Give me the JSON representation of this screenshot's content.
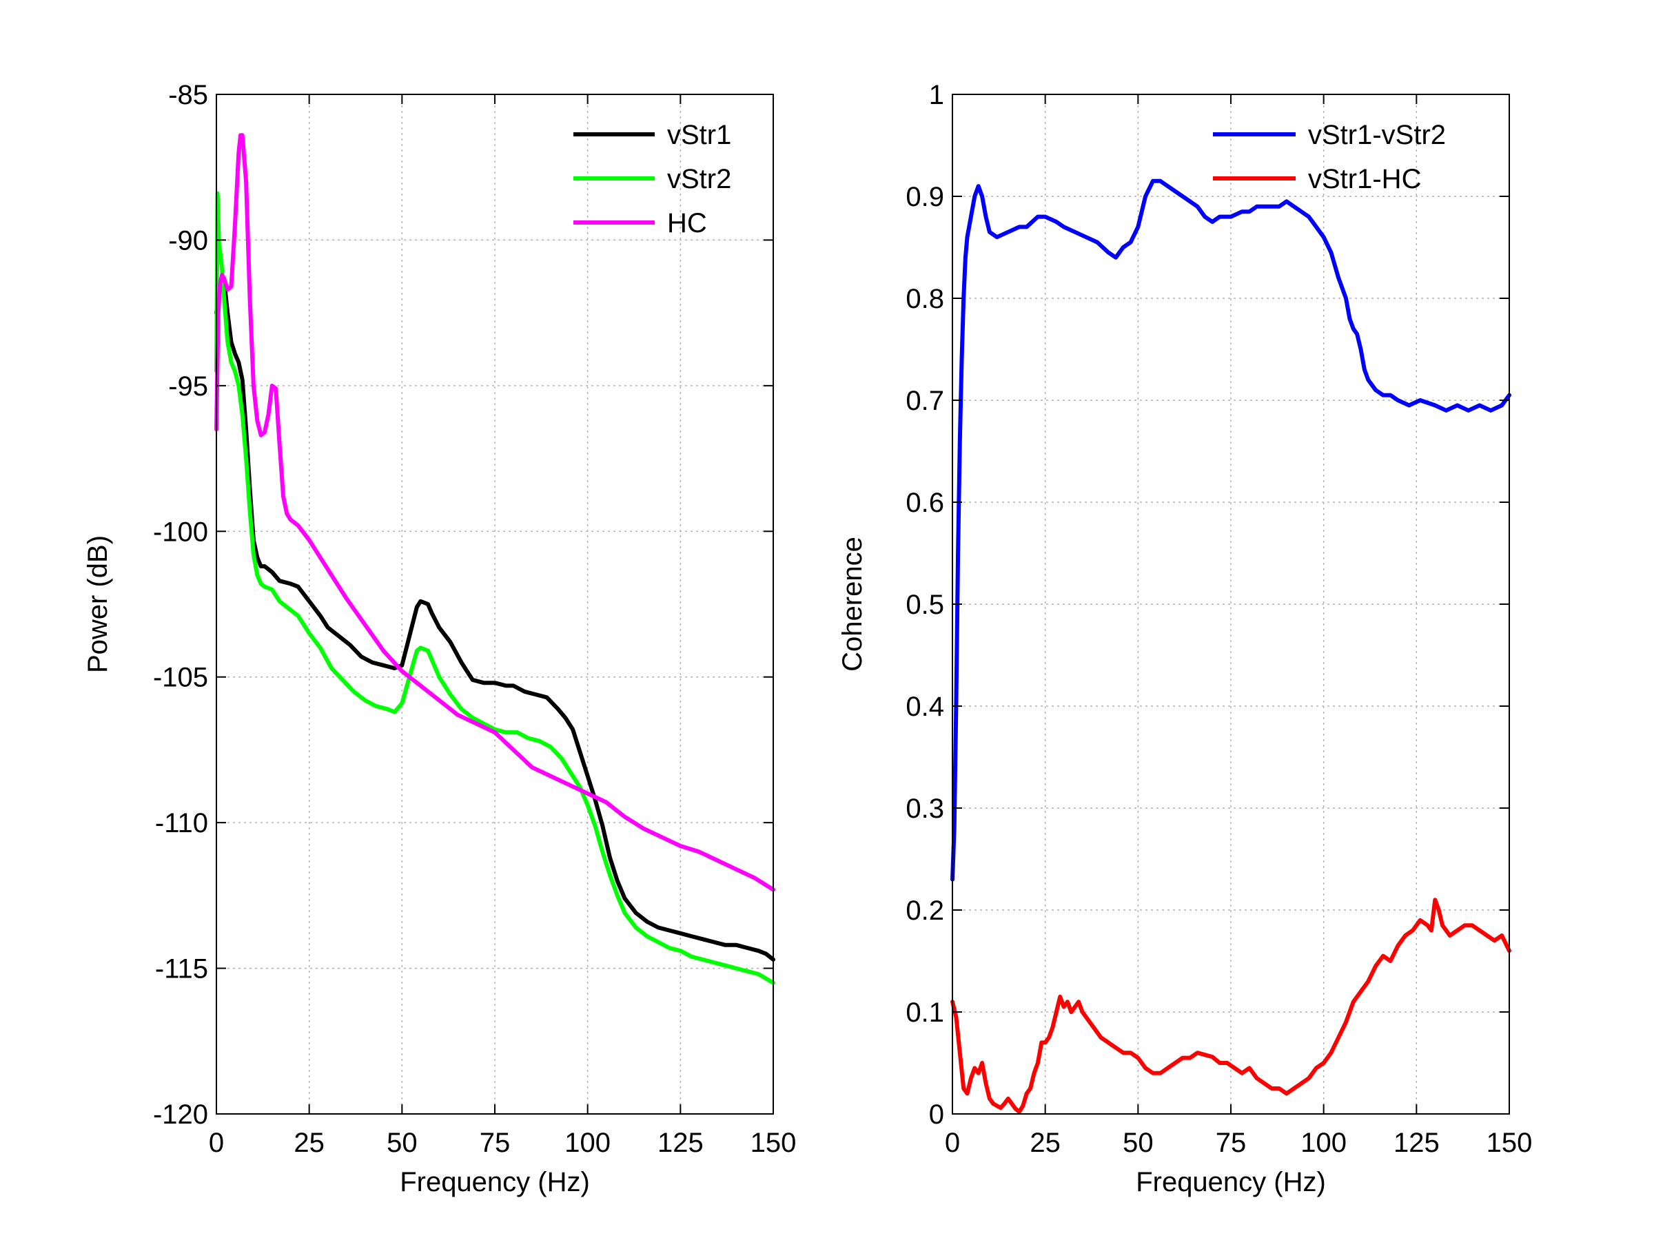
{
  "chart_data": [
    {
      "type": "line",
      "title": "",
      "xlabel": "Frequency (Hz)",
      "ylabel": "Power (dB)",
      "xlim": [
        0,
        150
      ],
      "ylim": [
        -120,
        -85
      ],
      "xticks": [
        0,
        25,
        50,
        75,
        100,
        125,
        150
      ],
      "yticks": [
        -120,
        -115,
        -110,
        -105,
        -100,
        -95,
        -90,
        -85
      ],
      "grid": true,
      "legend_position": "top-right",
      "series": [
        {
          "name": "vStr1",
          "color": "#000000",
          "x": [
            0,
            0.5,
            1,
            2,
            3,
            4,
            5,
            6,
            7,
            8,
            9,
            10,
            11,
            12,
            13,
            15,
            17,
            20,
            22,
            25,
            28,
            30,
            33,
            36,
            39,
            42,
            45,
            48,
            50,
            52,
            54,
            55,
            57,
            58,
            60,
            63,
            66,
            69,
            72,
            75,
            78,
            80,
            83,
            86,
            89,
            92,
            94,
            96,
            98,
            100,
            102,
            104,
            106,
            108,
            110,
            113,
            116,
            119,
            122,
            125,
            128,
            131,
            134,
            137,
            140,
            143,
            146,
            148,
            150
          ],
          "y": [
            -92.5,
            -92.0,
            -91.5,
            -91.3,
            -92.5,
            -93.5,
            -93.9,
            -94.2,
            -94.8,
            -96.5,
            -98.5,
            -100.3,
            -100.9,
            -101.2,
            -101.2,
            -101.4,
            -101.7,
            -101.8,
            -101.9,
            -102.4,
            -102.9,
            -103.3,
            -103.6,
            -103.9,
            -104.3,
            -104.5,
            -104.6,
            -104.7,
            -104.6,
            -103.6,
            -102.6,
            -102.4,
            -102.5,
            -102.8,
            -103.3,
            -103.8,
            -104.5,
            -105.1,
            -105.2,
            -105.2,
            -105.3,
            -105.3,
            -105.5,
            -105.6,
            -105.7,
            -106.1,
            -106.4,
            -106.8,
            -107.6,
            -108.4,
            -109.2,
            -110.1,
            -111.2,
            -112.0,
            -112.6,
            -113.1,
            -113.4,
            -113.6,
            -113.7,
            -113.8,
            -113.9,
            -114.0,
            -114.1,
            -114.2,
            -114.2,
            -114.3,
            -114.4,
            -114.5,
            -114.7
          ]
        },
        {
          "name": "vStr2",
          "color": "#00ff00",
          "x": [
            0,
            0.3,
            0.7,
            1,
            1.5,
            2,
            3,
            4,
            5,
            6,
            7,
            8,
            9,
            10,
            11,
            12,
            13,
            15,
            17,
            20,
            22,
            25,
            28,
            31,
            34,
            37,
            40,
            43,
            46,
            48,
            50,
            52,
            54,
            55,
            57,
            58,
            60,
            63,
            66,
            69,
            72,
            75,
            78,
            81,
            84,
            87,
            90,
            93,
            96,
            98,
            100,
            102,
            104,
            106,
            108,
            110,
            113,
            116,
            119,
            122,
            125,
            128,
            131,
            134,
            137,
            140,
            143,
            146,
            150
          ],
          "y": [
            -94.5,
            -88.4,
            -90.2,
            -90.4,
            -91.0,
            -91.9,
            -93.5,
            -94.2,
            -94.5,
            -95.0,
            -96.0,
            -97.5,
            -99.3,
            -100.8,
            -101.5,
            -101.8,
            -101.9,
            -102.0,
            -102.4,
            -102.7,
            -102.9,
            -103.5,
            -104.0,
            -104.7,
            -105.1,
            -105.5,
            -105.8,
            -106.0,
            -106.1,
            -106.2,
            -105.9,
            -105.0,
            -104.1,
            -104.0,
            -104.1,
            -104.4,
            -105.0,
            -105.6,
            -106.1,
            -106.4,
            -106.6,
            -106.8,
            -106.9,
            -106.9,
            -107.1,
            -107.2,
            -107.4,
            -107.8,
            -108.4,
            -108.8,
            -109.4,
            -110.1,
            -111.0,
            -111.8,
            -112.5,
            -113.1,
            -113.6,
            -113.9,
            -114.1,
            -114.3,
            -114.4,
            -114.6,
            -114.7,
            -114.8,
            -114.9,
            -115.0,
            -115.1,
            -115.2,
            -115.5
          ]
        },
        {
          "name": "HC",
          "color": "#ff00ff",
          "x": [
            0,
            0.5,
            1,
            1.5,
            2,
            3,
            4,
            5,
            6,
            6.5,
            7,
            8,
            9,
            10,
            11,
            12,
            13,
            14,
            15,
            16,
            17,
            18,
            19,
            20,
            22,
            25,
            28,
            31,
            35,
            40,
            45,
            50,
            55,
            60,
            65,
            70,
            75,
            80,
            85,
            90,
            95,
            100,
            105,
            110,
            115,
            120,
            125,
            130,
            135,
            140,
            145,
            150
          ],
          "y": [
            -96.5,
            -92.5,
            -91.5,
            -91.2,
            -91.3,
            -91.7,
            -91.6,
            -89.5,
            -87.0,
            -86.4,
            -86.4,
            -88.0,
            -92.0,
            -95.0,
            -96.2,
            -96.7,
            -96.6,
            -96.0,
            -95.0,
            -95.1,
            -97.0,
            -98.8,
            -99.4,
            -99.6,
            -99.8,
            -100.3,
            -100.9,
            -101.5,
            -102.3,
            -103.2,
            -104.1,
            -104.8,
            -105.3,
            -105.8,
            -106.3,
            -106.6,
            -106.9,
            -107.5,
            -108.1,
            -108.4,
            -108.7,
            -109.0,
            -109.3,
            -109.8,
            -110.2,
            -110.5,
            -110.8,
            -111.0,
            -111.3,
            -111.6,
            -111.9,
            -112.3
          ]
        }
      ]
    },
    {
      "type": "line",
      "title": "",
      "xlabel": "Frequency (Hz)",
      "ylabel": "Coherence",
      "xlim": [
        0,
        150
      ],
      "ylim": [
        0,
        1
      ],
      "xticks": [
        0,
        25,
        50,
        75,
        100,
        125,
        150
      ],
      "yticks": [
        0,
        0.1,
        0.2,
        0.3,
        0.4,
        0.5,
        0.6,
        0.7,
        0.8,
        0.9,
        1
      ],
      "ytick_labels": [
        "0",
        "0.1",
        "0.2",
        "0.3",
        "0.4",
        "0.5",
        "0.6",
        "0.7",
        "0.8",
        "0.9",
        "1"
      ],
      "grid": true,
      "legend_position": "top-right",
      "series": [
        {
          "name": "vStr1-vStr2",
          "color": "#0000ff",
          "x": [
            0,
            0.5,
            1,
            1.5,
            2,
            2.5,
            3,
            3.5,
            4,
            5,
            6,
            7,
            8,
            9,
            10,
            12,
            15,
            18,
            20,
            23,
            25,
            28,
            30,
            33,
            36,
            39,
            42,
            44,
            46,
            48,
            50,
            52,
            54,
            56,
            58,
            60,
            62,
            64,
            66,
            68,
            70,
            72,
            75,
            78,
            80,
            82,
            85,
            88,
            90,
            92,
            94,
            96,
            98,
            100,
            102,
            104,
            106,
            107,
            108,
            109,
            110,
            111,
            112,
            114,
            116,
            118,
            120,
            123,
            126,
            130,
            133,
            136,
            139,
            142,
            145,
            148,
            150
          ],
          "y": [
            0.23,
            0.28,
            0.4,
            0.55,
            0.66,
            0.74,
            0.8,
            0.84,
            0.86,
            0.88,
            0.9,
            0.91,
            0.9,
            0.88,
            0.865,
            0.86,
            0.865,
            0.87,
            0.87,
            0.88,
            0.88,
            0.875,
            0.87,
            0.865,
            0.86,
            0.855,
            0.845,
            0.84,
            0.85,
            0.855,
            0.87,
            0.9,
            0.915,
            0.915,
            0.91,
            0.905,
            0.9,
            0.895,
            0.89,
            0.88,
            0.875,
            0.88,
            0.88,
            0.885,
            0.885,
            0.89,
            0.89,
            0.89,
            0.895,
            0.89,
            0.885,
            0.88,
            0.87,
            0.86,
            0.845,
            0.82,
            0.8,
            0.78,
            0.77,
            0.765,
            0.75,
            0.73,
            0.72,
            0.71,
            0.705,
            0.705,
            0.7,
            0.695,
            0.7,
            0.695,
            0.69,
            0.695,
            0.69,
            0.695,
            0.69,
            0.695,
            0.705
          ]
        },
        {
          "name": "vStr1-HC",
          "color": "#ff0000",
          "x": [
            0,
            1,
            2,
            3,
            4,
            5,
            6,
            7,
            8,
            9,
            10,
            11,
            12,
            13,
            14,
            15,
            16,
            17,
            18,
            19,
            20,
            21,
            22,
            23,
            24,
            25,
            26,
            27,
            28,
            29,
            30,
            31,
            32,
            33,
            34,
            35,
            36,
            38,
            40,
            42,
            44,
            46,
            48,
            50,
            52,
            54,
            56,
            58,
            60,
            62,
            64,
            66,
            68,
            70,
            72,
            74,
            76,
            78,
            80,
            82,
            84,
            86,
            88,
            90,
            92,
            94,
            96,
            98,
            100,
            102,
            104,
            106,
            108,
            110,
            112,
            114,
            116,
            118,
            120,
            122,
            124,
            126,
            128,
            129,
            130,
            131,
            132,
            134,
            136,
            138,
            140,
            142,
            144,
            146,
            148,
            150
          ],
          "y": [
            0.11,
            0.095,
            0.06,
            0.025,
            0.02,
            0.035,
            0.045,
            0.04,
            0.05,
            0.03,
            0.015,
            0.01,
            0.008,
            0.006,
            0.01,
            0.015,
            0.01,
            0.005,
            0.002,
            0.008,
            0.02,
            0.025,
            0.04,
            0.05,
            0.07,
            0.07,
            0.075,
            0.085,
            0.1,
            0.115,
            0.105,
            0.11,
            0.1,
            0.105,
            0.11,
            0.1,
            0.095,
            0.085,
            0.075,
            0.07,
            0.065,
            0.06,
            0.06,
            0.055,
            0.045,
            0.04,
            0.04,
            0.045,
            0.05,
            0.055,
            0.055,
            0.06,
            0.058,
            0.056,
            0.05,
            0.05,
            0.045,
            0.04,
            0.045,
            0.035,
            0.03,
            0.025,
            0.025,
            0.02,
            0.025,
            0.03,
            0.035,
            0.045,
            0.05,
            0.06,
            0.075,
            0.09,
            0.11,
            0.12,
            0.13,
            0.145,
            0.155,
            0.15,
            0.165,
            0.175,
            0.18,
            0.19,
            0.185,
            0.18,
            0.21,
            0.2,
            0.185,
            0.175,
            0.18,
            0.185,
            0.185,
            0.18,
            0.175,
            0.17,
            0.175,
            0.16
          ]
        }
      ]
    }
  ]
}
